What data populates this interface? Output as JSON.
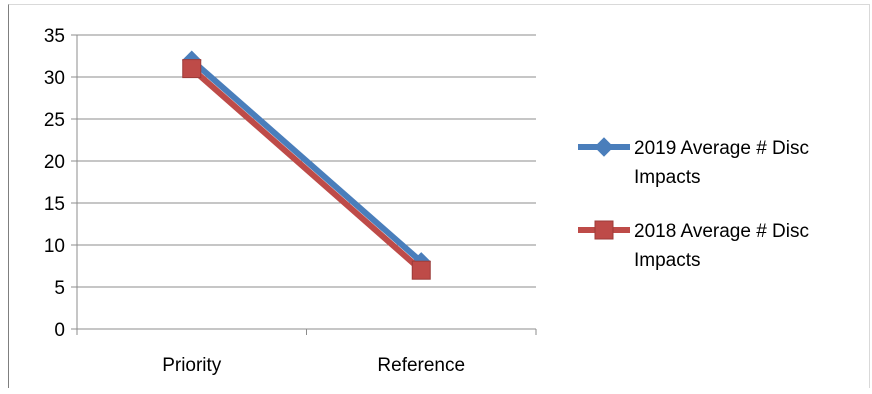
{
  "chart_data": {
    "type": "line",
    "categories": [
      "Priority",
      "Reference"
    ],
    "ylim": [
      0,
      35
    ],
    "yticks": [
      0,
      5,
      10,
      15,
      20,
      25,
      30,
      35
    ],
    "grid": true,
    "legend_position": "right",
    "series": [
      {
        "name": "2019 Average # Disc Impacts",
        "name_lines": [
          "2019 Average # Disc",
          "Impacts"
        ],
        "values": [
          32,
          8
        ],
        "color": "#4a7ebb",
        "marker": "diamond"
      },
      {
        "name": "2018 Average # Disc Impacts",
        "name_lines": [
          "2018 Average # Disc",
          "Impacts"
        ],
        "values": [
          31,
          7
        ],
        "color": "#be4b48",
        "marker": "square"
      }
    ]
  }
}
